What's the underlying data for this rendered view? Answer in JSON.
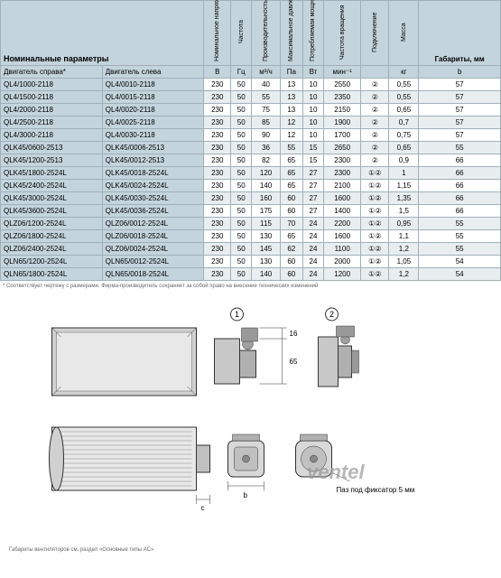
{
  "headers": {
    "nominal": "Номинальные параметры",
    "engine_right": "Двигатель справа*",
    "engine_left": "Двигатель слева",
    "col_napr": "Номинальное напряжение",
    "col_chast": "Частота",
    "col_proizv": "Производительность",
    "col_makdav": "Максимальное давление",
    "col_potrmosch": "Потребляемая мощность",
    "col_chastvr": "Частота вращения",
    "col_podkl": "Подключение",
    "col_massa": "Масса",
    "gabariti": "Габариты, мм",
    "unit_v": "В",
    "unit_gc": "Гц",
    "unit_m3h": "м³/ч",
    "unit_pa": "Па",
    "unit_vt": "Вт",
    "unit_min": "мин⁻¹",
    "unit_blank": "",
    "unit_kg": "кг",
    "unit_b": "b"
  },
  "rows": [
    {
      "mr": "QL4/1000-2118",
      "ml": "QL4/0010-2118",
      "v": "230",
      "gc": "50",
      "m3": "40",
      "pa": "13",
      "vt": "10",
      "min": "2550",
      "pod": "②",
      "kg": "0,55",
      "b": "57"
    },
    {
      "mr": "QL4/1500-2118",
      "ml": "QL4/0015-2118",
      "v": "230",
      "gc": "50",
      "m3": "55",
      "pa": "13",
      "vt": "10",
      "min": "2350",
      "pod": "②",
      "kg": "0,55",
      "b": "57"
    },
    {
      "mr": "QL4/2000-2118",
      "ml": "QL4/0020-2118",
      "v": "230",
      "gc": "50",
      "m3": "75",
      "pa": "13",
      "vt": "10",
      "min": "2150",
      "pod": "②",
      "kg": "0,65",
      "b": "57"
    },
    {
      "mr": "QL4/2500-2118",
      "ml": "QL4/0025-2118",
      "v": "230",
      "gc": "50",
      "m3": "85",
      "pa": "12",
      "vt": "10",
      "min": "1900",
      "pod": "②",
      "kg": "0,7",
      "b": "57"
    },
    {
      "mr": "QL4/3000-2118",
      "ml": "QL4/0030-2118",
      "v": "230",
      "gc": "50",
      "m3": "90",
      "pa": "12",
      "vt": "10",
      "min": "1700",
      "pod": "②",
      "kg": "0,75",
      "b": "57"
    },
    {
      "mr": "QLK45/0600-2513",
      "ml": "QLK45/0006-2513",
      "v": "230",
      "gc": "50",
      "m3": "36",
      "pa": "55",
      "vt": "15",
      "min": "2650",
      "pod": "②",
      "kg": "0,65",
      "b": "55"
    },
    {
      "mr": "QLK45/1200-2513",
      "ml": "QLK45/0012-2513",
      "v": "230",
      "gc": "50",
      "m3": "82",
      "pa": "65",
      "vt": "15",
      "min": "2300",
      "pod": "②",
      "kg": "0,9",
      "b": "66"
    },
    {
      "mr": "QLK45/1800-2524L",
      "ml": "QLK45/0018-2524L",
      "v": "230",
      "gc": "50",
      "m3": "120",
      "pa": "65",
      "vt": "27",
      "min": "2300",
      "pod": "①②",
      "kg": "1",
      "b": "66"
    },
    {
      "mr": "QLK45/2400-2524L",
      "ml": "QLK45/0024-2524L",
      "v": "230",
      "gc": "50",
      "m3": "140",
      "pa": "65",
      "vt": "27",
      "min": "2100",
      "pod": "①②",
      "kg": "1,15",
      "b": "66"
    },
    {
      "mr": "QLK45/3000-2524L",
      "ml": "QLK45/0030-2524L",
      "v": "230",
      "gc": "50",
      "m3": "160",
      "pa": "60",
      "vt": "27",
      "min": "1600",
      "pod": "①②",
      "kg": "1,35",
      "b": "66"
    },
    {
      "mr": "QLK45/3600-2524L",
      "ml": "QLK45/0036-2524L",
      "v": "230",
      "gc": "50",
      "m3": "175",
      "pa": "60",
      "vt": "27",
      "min": "1400",
      "pod": "①②",
      "kg": "1,5",
      "b": "66"
    },
    {
      "mr": "QLZ06/1200-2524L",
      "ml": "QLZ06/0012-2524L",
      "v": "230",
      "gc": "50",
      "m3": "115",
      "pa": "70",
      "vt": "24",
      "min": "2200",
      "pod": "①②",
      "kg": "0,95",
      "b": "55"
    },
    {
      "mr": "QLZ06/1800-2524L",
      "ml": "QLZ06/0018-2524L",
      "v": "230",
      "gc": "50",
      "m3": "130",
      "pa": "65",
      "vt": "24",
      "min": "1600",
      "pod": "①②",
      "kg": "1,1",
      "b": "55"
    },
    {
      "mr": "QLZ06/2400-2524L",
      "ml": "QLZ06/0024-2524L",
      "v": "230",
      "gc": "50",
      "m3": "145",
      "pa": "62",
      "vt": "24",
      "min": "1100",
      "pod": "①②",
      "kg": "1,2",
      "b": "55"
    },
    {
      "mr": "QLN65/1200-2524L",
      "ml": "QLN65/0012-2524L",
      "v": "230",
      "gc": "50",
      "m3": "130",
      "pa": "60",
      "vt": "24",
      "min": "2000",
      "pod": "①②",
      "kg": "1,05",
      "b": "54"
    },
    {
      "mr": "QLN65/1800-2524L",
      "ml": "QLN65/0018-2524L",
      "v": "230",
      "gc": "50",
      "m3": "140",
      "pa": "60",
      "vt": "24",
      "min": "1200",
      "pod": "①②",
      "kg": "1,2",
      "b": "54"
    }
  ],
  "footnote": "* Соответствует чертежу с размерами. Фирма-производитель сохраняет за собой право на внесение технических изменений",
  "diagram": {
    "label1": "①",
    "label2": "②",
    "dim16": "16",
    "dim65": "65",
    "dimB": "b",
    "dimC": "c",
    "paz_label": "Паз под фиксатор 5 мм"
  },
  "bottom_note": "Габариты вентиляторов см. раздел «Основные типы АС»",
  "watermark": "ventel",
  "colors": {
    "header_bg": "#c4d4dc",
    "border": "#a0b0b8",
    "row_even": "#e8eef0",
    "row_odd": "#ffffff"
  }
}
